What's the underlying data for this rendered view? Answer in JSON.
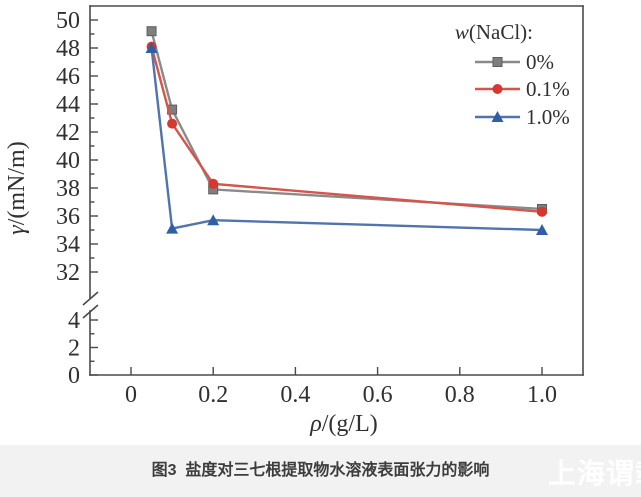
{
  "figure": {
    "caption": "图3  盐度对三七根提取物水溶液表面张力的影响",
    "watermark": "上海谓载"
  },
  "chart_data": {
    "type": "line",
    "title": "",
    "xlabel": "ρ/(g/L)",
    "ylabel": "γ/(mN/m)",
    "legend_title": "w(NaCl):",
    "legend_position": "top-right",
    "grid": false,
    "x": [
      0.05,
      0.1,
      0.2,
      1.0
    ],
    "series": [
      {
        "name": "0%",
        "marker": "square",
        "color": "#7f7f7f",
        "line_color": "#8a8a8a",
        "values": [
          49.2,
          43.6,
          37.9,
          36.5
        ]
      },
      {
        "name": "0.1%",
        "marker": "circle",
        "color": "#d6372f",
        "line_color": "#d6544a",
        "values": [
          48.1,
          42.6,
          38.3,
          36.3
        ]
      },
      {
        "name": "1.0%",
        "marker": "triangle",
        "color": "#315fa5",
        "line_color": "#4f74ae",
        "values": [
          48.0,
          35.1,
          35.7,
          35.0
        ]
      }
    ],
    "x_ticks": [
      "0",
      "0.2",
      "0.4",
      "0.6",
      "0.8",
      "1.0"
    ],
    "x_tick_values": [
      0,
      0.2,
      0.4,
      0.6,
      0.8,
      1.0
    ],
    "xlim": [
      -0.1,
      1.1
    ],
    "y_axis_break": {
      "between": [
        4,
        32
      ]
    },
    "y_upper_ticks": [
      "50",
      "48",
      "46",
      "44",
      "42",
      "40",
      "38",
      "36",
      "34",
      "32"
    ],
    "y_upper_tick_values": [
      50,
      48,
      46,
      44,
      42,
      40,
      38,
      36,
      34,
      32
    ],
    "y_lower_ticks": [
      "4",
      "2",
      "0"
    ],
    "y_lower_tick_values": [
      4,
      2,
      0
    ],
    "ylim_upper": [
      32,
      51
    ],
    "ylim_lower": [
      0,
      4
    ],
    "axis_color": "#4a4a4a",
    "text_color": "#303030"
  }
}
